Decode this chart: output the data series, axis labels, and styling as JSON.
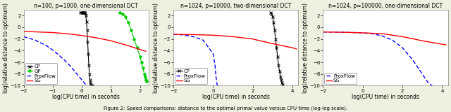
{
  "subplot1": {
    "title": "n=100, p=1000, one-dimensional DCT",
    "xlim": [
      -2,
      2.3
    ],
    "ylim": [
      -10,
      3
    ],
    "yticks": [
      -10,
      -8,
      -6,
      -4,
      -2,
      0,
      2
    ],
    "xticks": [
      -2,
      -1,
      0,
      1,
      2
    ],
    "cp": {
      "x": [
        -0.05,
        0.0,
        0.02,
        0.04,
        0.06,
        0.08,
        0.1,
        0.12,
        0.14,
        0.16,
        0.18,
        0.2,
        0.22,
        0.24,
        0.26,
        0.28,
        0.3,
        0.32,
        0.35
      ],
      "y": [
        2.5,
        2.5,
        2.5,
        2.5,
        2.5,
        2.5,
        2.5,
        2.4,
        2.0,
        1.0,
        -0.5,
        -2.5,
        -4.5,
        -6.5,
        -8.0,
        -9.0,
        -9.5,
        -9.8,
        -9.9
      ],
      "color": "#000000",
      "marker": "x",
      "linestyle": "-"
    },
    "qp": {
      "x": [
        1.3,
        1.4,
        1.5,
        1.6,
        1.7,
        1.8,
        1.9,
        2.0,
        2.05,
        2.1,
        2.15,
        2.18,
        2.2,
        2.22
      ],
      "y": [
        2.5,
        2.3,
        1.8,
        0.8,
        -0.5,
        -2.0,
        -3.5,
        -5.0,
        -6.0,
        -7.0,
        -8.0,
        -8.5,
        -9.0,
        -9.2
      ],
      "color": "#00cc00",
      "marker": "o",
      "linestyle": "-"
    },
    "proxflow": {
      "x": [
        -2.0,
        -1.8,
        -1.6,
        -1.4,
        -1.2,
        -1.0,
        -0.8,
        -0.6,
        -0.4,
        -0.2,
        0.0,
        0.1,
        0.18,
        0.22
      ],
      "y": [
        -1.6,
        -1.9,
        -2.2,
        -2.7,
        -3.2,
        -3.9,
        -4.7,
        -5.6,
        -6.6,
        -7.8,
        -9.0,
        -9.6,
        -10.0,
        -10.0
      ],
      "color": "#0000ff",
      "marker": "",
      "linestyle": "--"
    },
    "sg": {
      "x": [
        -2.0,
        -1.5,
        -1.0,
        -0.5,
        0.0,
        0.5,
        1.0,
        1.5,
        2.0,
        2.2
      ],
      "y": [
        -0.7,
        -0.8,
        -0.9,
        -1.1,
        -1.4,
        -1.8,
        -2.3,
        -3.0,
        -3.8,
        -4.1
      ],
      "color": "#ff0000",
      "marker": "",
      "linestyle": "-"
    }
  },
  "subplot2": {
    "title": "n=1024, p=10000, two-dimensional DCT",
    "xlim": [
      -2,
      4.3
    ],
    "ylim": [
      -10,
      3
    ],
    "yticks": [
      -10,
      -8,
      -6,
      -4,
      -2,
      0,
      2
    ],
    "xticks": [
      -2,
      0,
      2,
      4
    ],
    "cp": {
      "x": [
        2.9,
        2.95,
        3.0,
        3.05,
        3.1,
        3.15,
        3.2,
        3.25,
        3.3,
        3.35,
        3.4,
        3.44,
        3.47,
        3.5
      ],
      "y": [
        2.5,
        2.3,
        1.8,
        0.8,
        -0.5,
        -2.0,
        -3.5,
        -5.0,
        -6.5,
        -7.5,
        -8.5,
        -9.0,
        -9.5,
        -9.8
      ],
      "color": "#000000",
      "marker": "x",
      "linestyle": "-"
    },
    "proxflow": {
      "x": [
        -2.0,
        -1.5,
        -1.0,
        -0.5,
        0.0,
        0.1,
        0.15,
        0.2,
        0.25
      ],
      "y": [
        -1.2,
        -1.3,
        -1.6,
        -2.2,
        -4.5,
        -6.5,
        -8.5,
        -9.8,
        -10.0
      ],
      "color": "#0000ff",
      "marker": "",
      "linestyle": "--"
    },
    "sg": {
      "x": [
        -2.0,
        -1.0,
        0.0,
        1.0,
        2.0,
        3.0,
        4.0,
        4.2
      ],
      "y": [
        -1.2,
        -1.25,
        -1.35,
        -1.6,
        -2.0,
        -2.8,
        -3.5,
        -3.7
      ],
      "color": "#ff0000",
      "marker": "",
      "linestyle": "-"
    }
  },
  "subplot3": {
    "title": "n=1024, p=100000, one-dimensional DCT",
    "xlim": [
      -2,
      4.3
    ],
    "ylim": [
      -10,
      3
    ],
    "yticks": [
      -10,
      -8,
      -6,
      -4,
      -2,
      0,
      2
    ],
    "xticks": [
      -2,
      0,
      2,
      4
    ],
    "proxflow": {
      "x": [
        -2.0,
        -1.5,
        -1.0,
        -0.5,
        0.0,
        0.5,
        1.0,
        1.5,
        2.0,
        2.5,
        3.0,
        3.3,
        3.5,
        3.6
      ],
      "y": [
        -0.8,
        -0.82,
        -0.85,
        -0.9,
        -0.95,
        -1.1,
        -1.5,
        -2.2,
        -3.5,
        -5.5,
        -8.0,
        -9.5,
        -10.0,
        -10.0
      ],
      "color": "#0000ff",
      "marker": "",
      "linestyle": "--"
    },
    "sg": {
      "x": [
        -2.0,
        -1.0,
        0.0,
        1.0,
        2.0,
        3.0,
        4.0,
        4.2
      ],
      "y": [
        -0.8,
        -0.85,
        -0.95,
        -1.1,
        -1.6,
        -2.3,
        -2.9,
        -3.0
      ],
      "color": "#ff0000",
      "marker": "",
      "linestyle": "-"
    }
  },
  "xlabel": "log(CPU time) in seconds",
  "ylabel": "log(relative distance to optimum)",
  "figure_caption": "Figure 2: Speed comparisons: distance to the optimal primal value versus CPU time (log-log scale).",
  "bg_color": "#f0f0e0",
  "axes_bg": "#ffffff",
  "font_size": 5.5,
  "title_font_size": 5.5,
  "legend_font_size": 5.0,
  "tick_font_size": 5.0
}
